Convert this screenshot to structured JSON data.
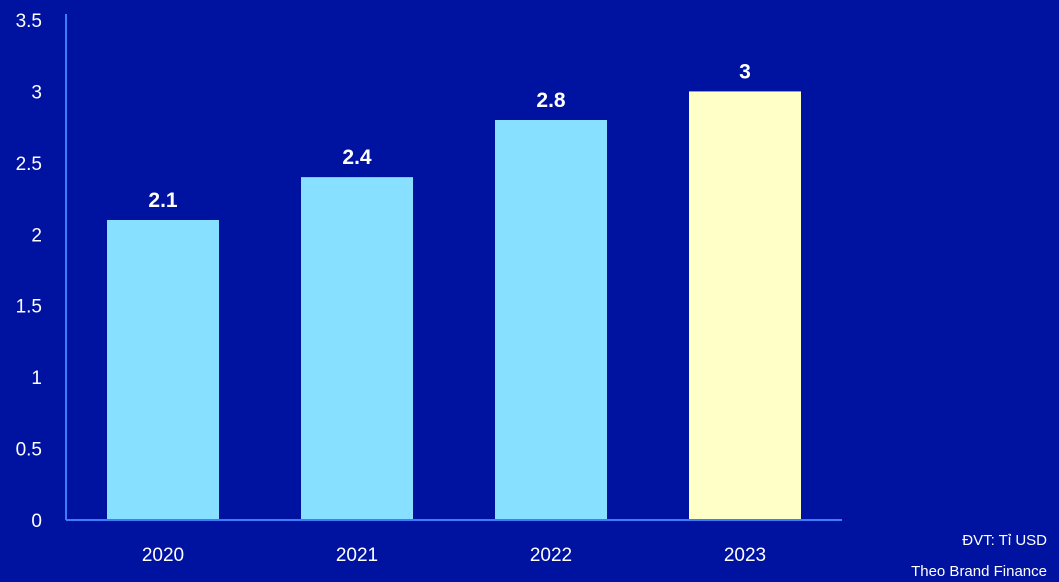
{
  "chart_data": {
    "type": "bar",
    "categories": [
      "2020",
      "2021",
      "2022",
      "2023"
    ],
    "values": [
      2.1,
      2.4,
      2.8,
      3
    ],
    "data_labels": [
      "2.1",
      "2.4",
      "2.8",
      "3"
    ],
    "y_ticks": [
      "0",
      "0.5",
      "1",
      "1.5",
      "2",
      "2.5",
      "3",
      "3.5"
    ],
    "ylim": [
      0,
      3.5
    ],
    "title": "",
    "xlabel": "",
    "ylabel": "",
    "grid": false,
    "bar_colors": [
      "#87e0ff",
      "#87e0ff",
      "#87e0ff",
      "#ffffc8"
    ],
    "axis_color": "#3d7bff",
    "background": "#0012a0"
  },
  "notes": {
    "unit": "ĐVT: Tỉ USD",
    "source": "Theo Brand Finance"
  }
}
